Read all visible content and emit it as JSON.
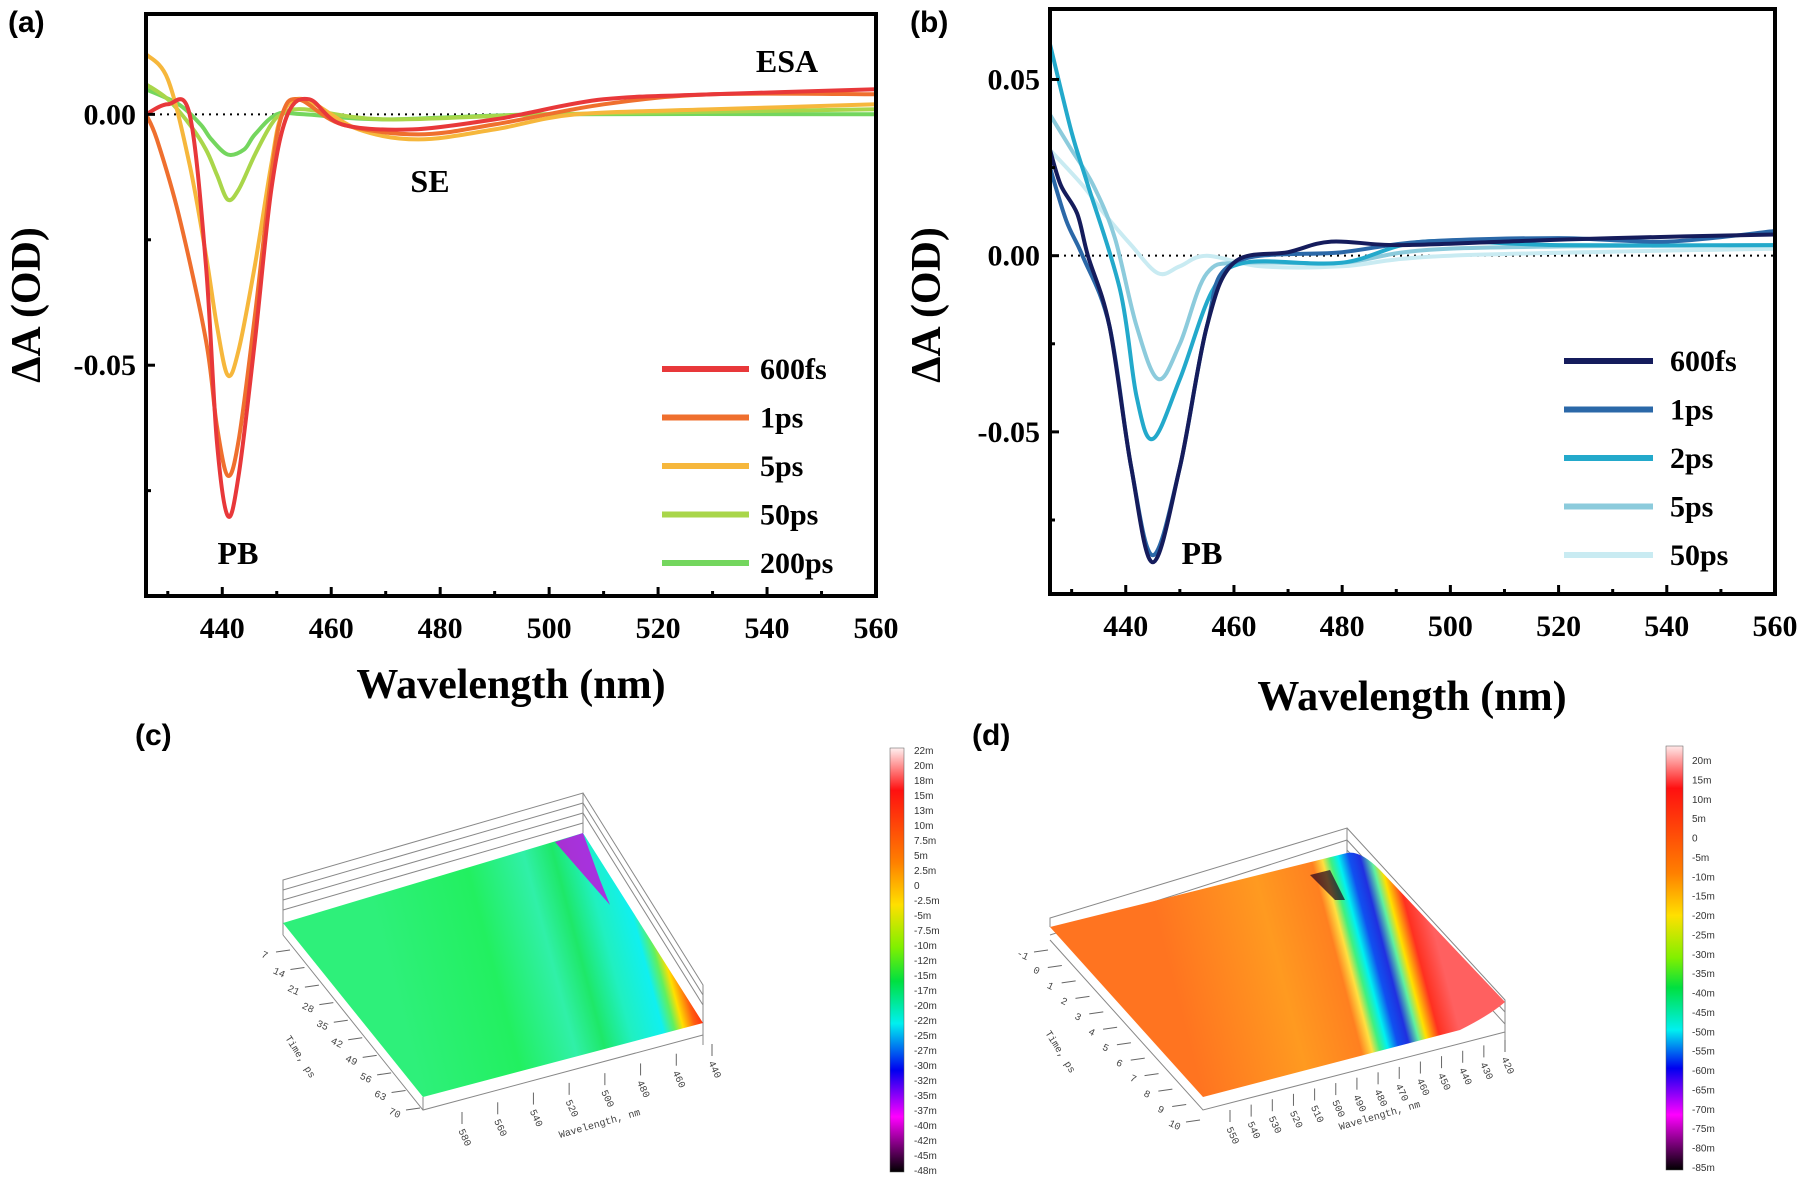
{
  "chart_data": [
    {
      "panel": "(a)",
      "type": "line",
      "xlabel": "Wavelength (nm)",
      "ylabel": "ΔA (OD)",
      "xlim": [
        426,
        560
      ],
      "ylim": [
        -0.096,
        0.02
      ],
      "xticks": [
        440,
        460,
        480,
        500,
        520,
        540,
        560
      ],
      "yticks": [
        0.0,
        -0.05
      ],
      "ytick_labels": [
        "0.00",
        "-0.05"
      ],
      "zero_line": "dotted",
      "legend_position": "bottom-right",
      "annotations": [
        "ESA",
        "SE",
        "PB"
      ],
      "series": [
        {
          "name": "600fs",
          "color": "#e8383a",
          "x": [
            426,
            430,
            434,
            437,
            439,
            441,
            443,
            446,
            449,
            452,
            456,
            462,
            475,
            490,
            495,
            510,
            530,
            560
          ],
          "y": [
            0,
            0.002,
            0,
            -0.03,
            -0.065,
            -0.08,
            -0.072,
            -0.045,
            -0.015,
            0,
            0.003,
            -0.002,
            -0.003,
            -0.001,
            0,
            0.003,
            0.004,
            0.005
          ]
        },
        {
          "name": "1ps",
          "color": "#ef6f2e",
          "x": [
            426,
            428,
            432,
            437,
            439,
            441,
            443,
            446,
            449,
            451,
            454,
            462,
            476,
            490,
            510,
            530,
            560
          ],
          "y": [
            0,
            -0.005,
            -0.02,
            -0.045,
            -0.062,
            -0.072,
            -0.065,
            -0.04,
            -0.012,
            0,
            0.003,
            -0.002,
            -0.004,
            -0.002,
            0.002,
            0.004,
            0.004
          ]
        },
        {
          "name": "5ps",
          "color": "#f6b73c",
          "x": [
            426,
            430,
            434,
            437,
            439,
            441,
            443,
            446,
            449,
            451,
            455,
            465,
            476,
            490,
            505,
            530,
            560
          ],
          "y": [
            0.012,
            0.007,
            -0.01,
            -0.028,
            -0.042,
            -0.052,
            -0.047,
            -0.03,
            -0.01,
            0,
            0.003,
            -0.003,
            -0.005,
            -0.003,
            0,
            0.001,
            0.002
          ]
        },
        {
          "name": "50ps",
          "color": "#a9d64a",
          "x": [
            426,
            430,
            434,
            437,
            439,
            441,
            443,
            446,
            449,
            451,
            455,
            470,
            500,
            560
          ],
          "y": [
            0.006,
            0.003,
            -0.002,
            -0.007,
            -0.012,
            -0.017,
            -0.015,
            -0.008,
            -0.002,
            0,
            0.001,
            -0.001,
            0,
            0.001
          ]
        },
        {
          "name": "200ps",
          "color": "#74d65e",
          "x": [
            426,
            432,
            436,
            438,
            441,
            444,
            446,
            450,
            455,
            470,
            500,
            560
          ],
          "y": [
            0.005,
            0.002,
            -0.002,
            -0.005,
            -0.008,
            -0.007,
            -0.004,
            0,
            0,
            -0.001,
            0,
            0
          ]
        }
      ]
    },
    {
      "panel": "(b)",
      "type": "line",
      "xlabel": "Wavelength (nm)",
      "ylabel": "ΔA (OD)",
      "xlim": [
        426,
        560
      ],
      "ylim": [
        -0.096,
        0.07
      ],
      "xticks": [
        440,
        460,
        480,
        500,
        520,
        540,
        560
      ],
      "yticks": [
        0.05,
        0.0,
        -0.05
      ],
      "ytick_labels": [
        "0.05",
        "0.00",
        "-0.05"
      ],
      "zero_line": "dotted",
      "legend_position": "bottom-right",
      "annotations": [
        "PB"
      ],
      "series": [
        {
          "name": "600fs",
          "color": "#151c5c",
          "x": [
            426,
            428,
            431,
            433,
            437,
            441,
            445,
            450,
            455,
            460,
            470,
            478,
            490,
            510,
            530,
            560
          ],
          "y": [
            0.03,
            0.02,
            0.012,
            0,
            -0.02,
            -0.06,
            -0.087,
            -0.06,
            -0.02,
            -0.002,
            0.001,
            0.004,
            0.003,
            0.004,
            0.005,
            0.006
          ]
        },
        {
          "name": "1ps",
          "color": "#2b68a8",
          "x": [
            426,
            429,
            432,
            437,
            441,
            445,
            450,
            455,
            460,
            480,
            495,
            520,
            540,
            560
          ],
          "y": [
            0.025,
            0.01,
            0,
            -0.02,
            -0.06,
            -0.085,
            -0.06,
            -0.02,
            -0.002,
            0.001,
            0.004,
            0.005,
            0.004,
            0.007
          ]
        },
        {
          "name": "2ps",
          "color": "#23a9cb",
          "x": [
            426,
            430,
            433,
            439,
            442,
            445,
            450,
            456,
            462,
            480,
            495,
            520,
            560
          ],
          "y": [
            0.06,
            0.035,
            0.02,
            -0.01,
            -0.04,
            -0.052,
            -0.035,
            -0.01,
            -0.002,
            -0.002,
            0.004,
            0.003,
            0.003
          ]
        },
        {
          "name": "5ps",
          "color": "#8ccbdc",
          "x": [
            426,
            430,
            434,
            438,
            442,
            446,
            450,
            455,
            462,
            480,
            500,
            560
          ],
          "y": [
            0.04,
            0.03,
            0.02,
            0.005,
            -0.02,
            -0.035,
            -0.025,
            -0.005,
            -0.002,
            -0.002,
            0.002,
            0.003
          ]
        },
        {
          "name": "50ps",
          "color": "#c9ebf2",
          "x": [
            426,
            432,
            436,
            441,
            446,
            450,
            455,
            465,
            480,
            500,
            560
          ],
          "y": [
            0.03,
            0.02,
            0.012,
            0.003,
            -0.005,
            -0.003,
            0,
            -0.003,
            -0.003,
            0,
            0.002
          ]
        }
      ]
    },
    {
      "panel": "(c)",
      "type": "surface",
      "xlabel": "Wavelength, nm",
      "ylabel": "Time, ps",
      "wavelength_ticks": [
        "580",
        "560",
        "540",
        "520",
        "500",
        "480",
        "460",
        "440"
      ],
      "time_ticks": [
        "7",
        "14",
        "21",
        "28",
        "35",
        "42",
        "49",
        "56",
        "63",
        "70"
      ],
      "colorbar_labels": [
        "22m",
        "20m",
        "18m",
        "15m",
        "13m",
        "10m",
        "7.5m",
        "5m",
        "2.5m",
        "0",
        "-2.5m",
        "-5m",
        "-7.5m",
        "-10m",
        "-12m",
        "-15m",
        "-17m",
        "-20m",
        "-22m",
        "-25m",
        "-27m",
        "-30m",
        "-32m",
        "-35m",
        "-37m",
        "-40m",
        "-42m",
        "-45m",
        "-48m"
      ],
      "colorbar_range": [
        -0.048,
        0.022
      ]
    },
    {
      "panel": "(d)",
      "type": "surface",
      "xlabel": "Wavelength, nm",
      "ylabel": "Time, ps",
      "wavelength_ticks": [
        "550",
        "540",
        "530",
        "520",
        "510",
        "500",
        "490",
        "480",
        "470",
        "460",
        "450",
        "440",
        "430",
        "420"
      ],
      "time_ticks": [
        "-1",
        "0",
        "1",
        "2",
        "3",
        "4",
        "5",
        "6",
        "7",
        "8",
        "9",
        "10"
      ],
      "colorbar_labels": [
        "20m",
        "15m",
        "10m",
        "5m",
        "0",
        "-5m",
        "-10m",
        "-15m",
        "-20m",
        "-25m",
        "-30m",
        "-35m",
        "-40m",
        "-45m",
        "-50m",
        "-55m",
        "-60m",
        "-65m",
        "-70m",
        "-75m",
        "-80m",
        "-85m"
      ],
      "colorbar_range": [
        -0.085,
        0.022
      ]
    }
  ]
}
